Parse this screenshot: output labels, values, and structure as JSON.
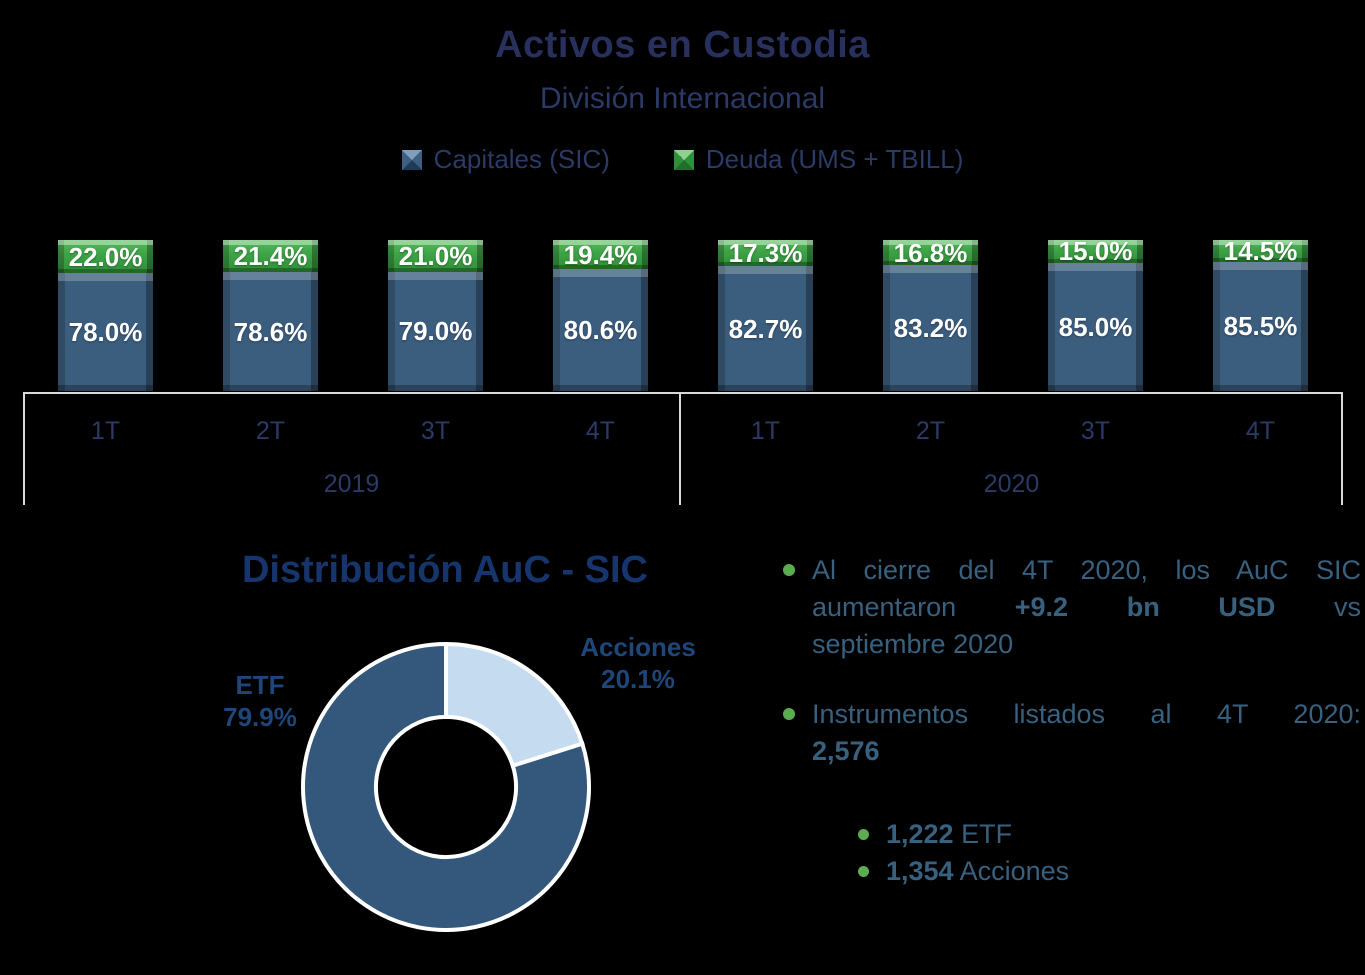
{
  "header": {
    "title": "Activos en Custodia",
    "subtitle": "División Internacional"
  },
  "legend": [
    {
      "label": "Capitales (SIC)",
      "color": "#3C5E7E",
      "marker": "beveled-square-blue"
    },
    {
      "label": "Deuda (UMS + TBILL)",
      "color": "#3EA346",
      "marker": "beveled-square-green"
    }
  ],
  "chart_data": [
    {
      "type": "bar",
      "subtype": "stacked-100-percent",
      "title": "Activos en Custodia",
      "subtitle": "División Internacional",
      "categories": [
        "1T",
        "2T",
        "3T",
        "4T",
        "1T",
        "2T",
        "3T",
        "4T"
      ],
      "groups": [
        {
          "label": "2019",
          "from": 0,
          "to": 3
        },
        {
          "label": "2020",
          "from": 4,
          "to": 7
        }
      ],
      "series": [
        {
          "name": "Capitales (SIC)",
          "color": "#3C5E7E",
          "values": [
            78.0,
            78.6,
            79.0,
            80.6,
            82.7,
            83.2,
            85.0,
            85.5
          ]
        },
        {
          "name": "Deuda (UMS + TBILL)",
          "color": "#3EA346",
          "values": [
            22.0,
            21.4,
            21.0,
            19.4,
            17.3,
            16.8,
            15.0,
            14.5
          ]
        }
      ],
      "value_label_format": "0.0%",
      "legend_position": "top",
      "grid": false
    },
    {
      "type": "pie",
      "subtype": "donut",
      "title": "Distribución AuC - SIC",
      "slices": [
        {
          "label": "Acciones",
          "value": 20.1,
          "color": "#C5DBF0"
        },
        {
          "label": "ETF",
          "value": 79.9,
          "color": "#33587B"
        }
      ],
      "start_angle_deg": 0,
      "direction": "clockwise",
      "inner_radius_ratio": 0.49,
      "slice_border_color": "#FFFFFF"
    }
  ],
  "donut_section": {
    "title": "Distribución AuC - SIC",
    "etf_label": "ETF",
    "etf_value": "79.9%",
    "acciones_label": "Acciones",
    "acciones_value": "20.1%"
  },
  "notes": {
    "bullet1": {
      "lines": [
        {
          "segments": [
            {
              "t": "Al cierre del 4T 2020, los AuC SIC"
            }
          ],
          "justify": true
        },
        {
          "segments": [
            {
              "t": "aumentaron "
            },
            {
              "t": "+9.2 bn USD",
              "b": true
            },
            {
              "t": " vs"
            }
          ],
          "justify": true
        },
        {
          "segments": [
            {
              "t": "septiembre 2020"
            }
          ],
          "justify": false
        }
      ]
    },
    "bullet2": {
      "lines": [
        {
          "segments": [
            {
              "t": "Instrumentos listados al 4T 2020:"
            }
          ],
          "justify": true
        },
        {
          "segments": [
            {
              "t": "2,576",
              "b": true
            }
          ],
          "justify": false
        }
      ]
    },
    "sub_bullets": [
      {
        "bold": "1,222",
        "text": " ETF"
      },
      {
        "bold": "1,354",
        "text": " Acciones"
      }
    ]
  },
  "colors": {
    "background": "#000000",
    "title_navy": "#28305E",
    "label_navy": "#2B3A66",
    "section_title_blue": "#16356D",
    "donut_label_blue": "#1F4679",
    "note_text_blue": "#38607F",
    "bar_blue": "#3C5E7E",
    "bar_green": "#3EA346",
    "donut_dark": "#33587B",
    "donut_light": "#C5DBF0",
    "bullet_green": "#5CAD51",
    "axis_line": "#D9D9D9"
  }
}
